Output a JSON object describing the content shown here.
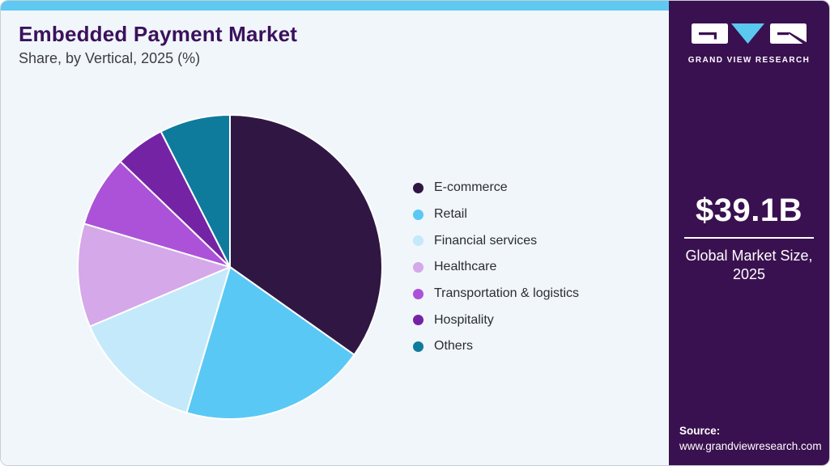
{
  "header": {
    "title": "Embedded Payment Market",
    "subtitle": "Share, by Vertical, 2025 (%)"
  },
  "branding": {
    "logo_text": "GRAND VIEW RESEARCH"
  },
  "sidebar": {
    "market_size": "$39.1B",
    "market_label_line1": "Global Market Size,",
    "market_label_line2": "2025",
    "source_label": "Source:",
    "source_url": "www.grandviewresearch.com"
  },
  "chart_data": {
    "type": "pie",
    "title": "Embedded Payment Market Share, by Vertical, 2025 (%)",
    "unit": "percent",
    "start_angle": "12 o'clock, clockwise",
    "legend_position": "right",
    "values_estimated": true,
    "segments": [
      {
        "label": "E-commerce",
        "value": 34.8,
        "color": "#301743"
      },
      {
        "label": "Retail",
        "value": 19.8,
        "color": "#5ac8f5"
      },
      {
        "label": "Financial services",
        "value": 14.0,
        "color": "#c4e9fa"
      },
      {
        "label": "Healthcare",
        "value": 11.0,
        "color": "#d5a8ea"
      },
      {
        "label": "Transportation & logistics",
        "value": 7.6,
        "color": "#ac52d8"
      },
      {
        "label": "Hospitality",
        "value": 5.3,
        "color": "#7523a5"
      },
      {
        "label": "Others",
        "value": 7.5,
        "color": "#0f7b9c"
      }
    ]
  },
  "colors": {
    "accent": "#60c9f2",
    "sidebar_bg": "#3a1150",
    "panel_bg": "#f0f6fa",
    "title": "#3b115c",
    "logo_accent": "#5bc8f0"
  }
}
